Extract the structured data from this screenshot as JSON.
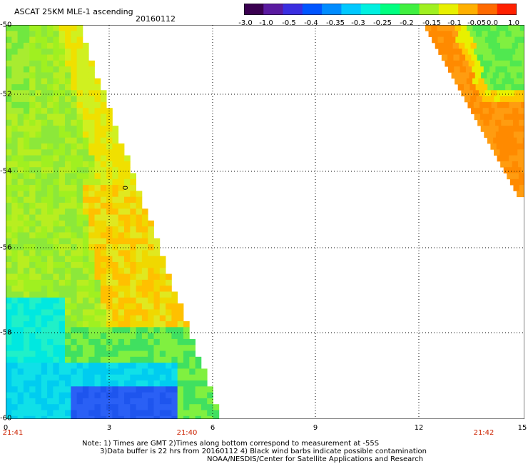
{
  "header": {
    "title": "ASCAT 25KM MLE-1 ascending",
    "date": "20160112"
  },
  "colorbar": {
    "labels": [
      "-3.0",
      "-1.0",
      "-0.5",
      "-0.4",
      "-0.35",
      "-0.3",
      "-0.25",
      "-0.2",
      "-0.15",
      "-0.1",
      "-0.05",
      "0.0",
      "1.0"
    ],
    "colors": [
      "#3a0050",
      "#5a1aa0",
      "#3a2ee0",
      "#0055ff",
      "#008cff",
      "#00c8ff",
      "#00f0e0",
      "#00ff80",
      "#40f040",
      "#a0f020",
      "#e8f000",
      "#ffb000",
      "#ff6a00",
      "#ff2000"
    ]
  },
  "map": {
    "y_labels": [
      "-50",
      "-52",
      "-54",
      "-56",
      "-58",
      "-60"
    ],
    "x_labels": [
      "0",
      "3",
      "6",
      "9",
      "12",
      "15"
    ],
    "time_labels": [
      "21:41",
      "21:40",
      "21:42"
    ],
    "marker": "0"
  },
  "notes": {
    "line1": "Note: 1) Times are GMT 2)Times along bottom correspond to measurement at -55S",
    "line2": "3)Data buffer is 22 hrs from 20160112 4) Black wind barbs indicate possible contamination",
    "line3": "NOAA/NESDIS/Center for Satellite Applications and Research"
  }
}
